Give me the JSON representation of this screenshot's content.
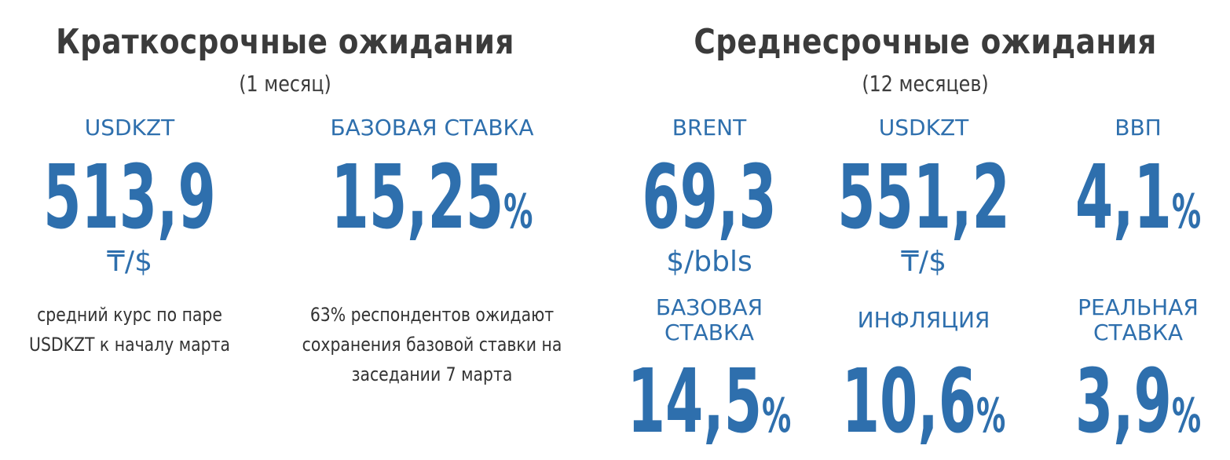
{
  "short_term": {
    "title": "Краткосрочные ожидания",
    "subtitle": "(1 месяц)",
    "items": [
      {
        "label": [
          "USDKZT"
        ],
        "value": "513,9",
        "unit": "₸/$",
        "note": [
          "средний курс по паре",
          "USDKZT к началу марта"
        ]
      },
      {
        "label": [
          "БАЗОВАЯ СТАВКА"
        ],
        "value": "15,25",
        "suffix": "%",
        "note": [
          "63% респондентов ожидают",
          "сохранения базовой ставки на",
          "заседании 7 марта"
        ]
      }
    ]
  },
  "medium_term": {
    "title": "Среднесрочные ожидания",
    "subtitle": "(12 месяцев)",
    "items": [
      {
        "label": [
          "BRENT"
        ],
        "value": "69,3",
        "unit": "$/bbls"
      },
      {
        "label": [
          "USDKZT"
        ],
        "value": "551,2",
        "unit": "₸/$"
      },
      {
        "label": [
          "ВВП"
        ],
        "value": "4,1",
        "suffix": "%"
      },
      {
        "label": [
          "БАЗОВАЯ",
          "СТАВКА"
        ],
        "value": "14,5",
        "suffix": "%"
      },
      {
        "label": [
          "ИНФЛЯЦИЯ"
        ],
        "value": "10,6",
        "suffix": "%"
      },
      {
        "label": [
          "РЕАЛЬНАЯ",
          "СТАВКА"
        ],
        "value": "3,9",
        "suffix": "%"
      }
    ]
  }
}
